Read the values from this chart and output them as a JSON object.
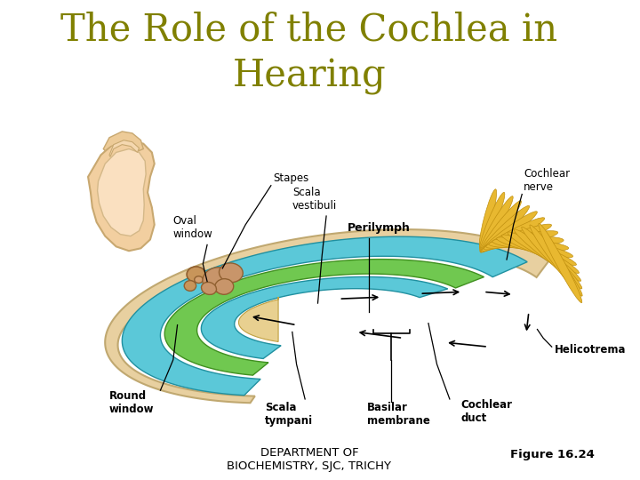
{
  "title": "The Role of the Cochlea in\nHearing",
  "title_color": "#808000",
  "title_fontsize": 30,
  "footer_center": "DEPARTMENT OF\nBIOCHEMISTRY, SJC, TRICHY",
  "footer_right": "Figure 16.24",
  "footer_fontsize": 9.5,
  "background_color": "#ffffff",
  "ear_outer_color": "#F0C8A0",
  "ear_outer_edge": "#C8A878",
  "cochlea_shell_color": "#E8D0A0",
  "cochlea_shell_edge": "#C0A870",
  "cyan_color": "#5BC8D8",
  "cyan_edge": "#2090A0",
  "green_color": "#70C850",
  "green_edge": "#409020",
  "nerve_color": "#E8B830",
  "nerve_edge": "#C09010",
  "stapes_color": "#C8955A",
  "stapes_edge": "#906030"
}
